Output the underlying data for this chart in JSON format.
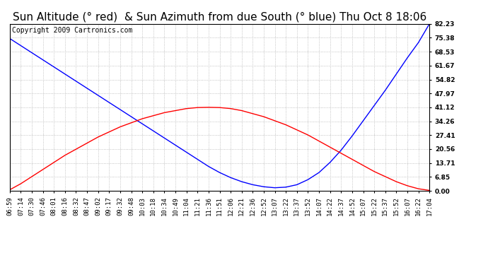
{
  "title": "Sun Altitude (° red)  & Sun Azimuth from due South (° blue) Thu Oct 8 18:06",
  "copyright": "Copyright 2009 Cartronics.com",
  "x_labels": [
    "06:59",
    "07:14",
    "07:30",
    "07:46",
    "08:01",
    "08:16",
    "08:32",
    "08:47",
    "09:02",
    "09:17",
    "09:32",
    "09:48",
    "10:03",
    "10:18",
    "10:34",
    "10:49",
    "11:04",
    "11:21",
    "11:36",
    "11:51",
    "12:06",
    "12:21",
    "12:36",
    "12:52",
    "13:07",
    "13:22",
    "13:37",
    "13:52",
    "14:07",
    "14:22",
    "14:37",
    "14:52",
    "15:07",
    "15:22",
    "15:37",
    "15:52",
    "16:07",
    "16:22",
    "17:04"
  ],
  "y_ticks": [
    0.0,
    6.85,
    13.71,
    20.56,
    27.41,
    34.26,
    41.12,
    47.97,
    54.82,
    61.67,
    68.53,
    75.38,
    82.23
  ],
  "y_max": 82.23,
  "y_min": 0.0,
  "bg_color": "#ffffff",
  "grid_color": "#aaaaaa",
  "altitude_color": "red",
  "azimuth_color": "blue",
  "title_fontsize": 11,
  "copyright_fontsize": 7,
  "tick_fontsize": 6.5,
  "altitude_data": [
    0.5,
    3.5,
    7.0,
    10.5,
    14.0,
    17.5,
    20.5,
    23.5,
    26.5,
    29.0,
    31.5,
    33.5,
    35.5,
    37.0,
    38.5,
    39.5,
    40.5,
    41.0,
    41.12,
    41.0,
    40.5,
    39.5,
    38.0,
    36.5,
    34.5,
    32.5,
    30.0,
    27.5,
    24.5,
    21.5,
    18.5,
    15.5,
    12.5,
    9.5,
    7.0,
    4.5,
    2.5,
    1.0,
    0.2
  ],
  "azimuth_data": [
    75.0,
    71.5,
    68.0,
    64.5,
    61.0,
    57.5,
    54.0,
    50.5,
    47.0,
    43.5,
    40.0,
    36.5,
    33.0,
    29.5,
    26.0,
    22.5,
    19.0,
    15.5,
    12.0,
    9.0,
    6.5,
    4.5,
    3.0,
    2.0,
    1.5,
    1.8,
    3.0,
    5.5,
    9.0,
    14.0,
    20.0,
    27.0,
    34.5,
    42.0,
    49.5,
    57.5,
    65.5,
    73.0,
    82.23
  ]
}
